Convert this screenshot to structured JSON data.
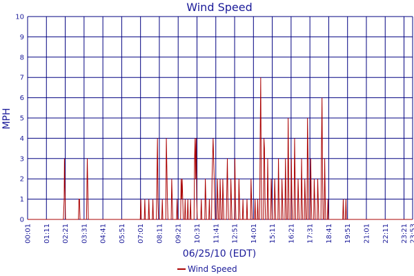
{
  "chart_data": {
    "type": "line",
    "title": "Wind Speed",
    "xlabel": "06/25/10 (EDT)",
    "ylabel": "MPH",
    "ylim": [
      0,
      10
    ],
    "y_ticks": [
      "0",
      "1",
      "2",
      "3",
      "4",
      "5",
      "6",
      "7",
      "8",
      "9",
      "10"
    ],
    "x_ticks": [
      "00:01",
      "01:11",
      "02:21",
      "03:31",
      "04:41",
      "05:51",
      "07:01",
      "08:11",
      "09:21",
      "10:31",
      "11:41",
      "12:51",
      "14:01",
      "15:11",
      "16:21",
      "17:31",
      "18:41",
      "19:51",
      "21:01",
      "22:11",
      "23:21",
      "23:53"
    ],
    "x_range": [
      "00:01",
      "23:53"
    ],
    "grid": true,
    "legend": "bottom-center",
    "colors": {
      "series": "#aa0000",
      "grid": "#000080",
      "text": "#1a1a99"
    },
    "series": [
      {
        "name": "Wind Speed",
        "points": [
          [
            "00:01",
            0
          ],
          [
            "02:14",
            0
          ],
          [
            "02:17",
            1
          ],
          [
            "02:18",
            3
          ],
          [
            "02:20",
            1.5
          ],
          [
            "02:22",
            0
          ],
          [
            "03:10",
            0
          ],
          [
            "03:12",
            1
          ],
          [
            "03:14",
            1
          ],
          [
            "03:16",
            0
          ],
          [
            "03:40",
            0
          ],
          [
            "03:42",
            2
          ],
          [
            "03:43",
            3
          ],
          [
            "03:45",
            1.5
          ],
          [
            "03:47",
            0
          ],
          [
            "07:00",
            0
          ],
          [
            "07:02",
            1
          ],
          [
            "07:04",
            0
          ],
          [
            "07:15",
            0
          ],
          [
            "07:17",
            1
          ],
          [
            "07:19",
            0
          ],
          [
            "07:30",
            0
          ],
          [
            "07:32",
            1
          ],
          [
            "07:34",
            0
          ],
          [
            "07:45",
            0
          ],
          [
            "07:47",
            1
          ],
          [
            "07:49",
            0
          ],
          [
            "08:00",
            0
          ],
          [
            "08:02",
            2
          ],
          [
            "08:04",
            4
          ],
          [
            "08:06",
            1
          ],
          [
            "08:08",
            0
          ],
          [
            "08:20",
            0
          ],
          [
            "08:22",
            1
          ],
          [
            "08:24",
            0
          ],
          [
            "08:35",
            0
          ],
          [
            "08:37",
            4
          ],
          [
            "08:39",
            2.5
          ],
          [
            "08:41",
            1
          ],
          [
            "08:43",
            0
          ],
          [
            "08:55",
            0
          ],
          [
            "08:57",
            2
          ],
          [
            "08:59",
            1
          ],
          [
            "09:01",
            0
          ],
          [
            "09:15",
            0
          ],
          [
            "09:17",
            1
          ],
          [
            "09:19",
            0
          ],
          [
            "09:30",
            0
          ],
          [
            "09:32",
            2
          ],
          [
            "09:34",
            1
          ],
          [
            "09:36",
            2
          ],
          [
            "09:38",
            1
          ],
          [
            "09:40",
            0
          ],
          [
            "09:45",
            0
          ],
          [
            "09:47",
            1
          ],
          [
            "09:49",
            0
          ],
          [
            "09:55",
            0
          ],
          [
            "09:57",
            1
          ],
          [
            "09:59",
            0
          ],
          [
            "10:05",
            0
          ],
          [
            "10:07",
            1
          ],
          [
            "10:09",
            0
          ],
          [
            "10:20",
            0
          ],
          [
            "10:22",
            3
          ],
          [
            "10:24",
            4
          ],
          [
            "10:26",
            2
          ],
          [
            "10:28",
            4
          ],
          [
            "10:30",
            1
          ],
          [
            "10:32",
            0
          ],
          [
            "10:45",
            0
          ],
          [
            "10:47",
            1
          ],
          [
            "10:49",
            0
          ],
          [
            "11:00",
            0
          ],
          [
            "11:02",
            2
          ],
          [
            "11:04",
            1
          ],
          [
            "11:06",
            0
          ],
          [
            "11:15",
            0
          ],
          [
            "11:17",
            1
          ],
          [
            "11:19",
            0
          ],
          [
            "11:25",
            0
          ],
          [
            "11:27",
            2
          ],
          [
            "11:29",
            3
          ],
          [
            "11:31",
            4
          ],
          [
            "11:33",
            3
          ],
          [
            "11:35",
            2
          ],
          [
            "11:37",
            1
          ],
          [
            "11:39",
            0
          ],
          [
            "11:45",
            0
          ],
          [
            "11:47",
            2
          ],
          [
            "11:49",
            1
          ],
          [
            "11:51",
            0
          ],
          [
            "11:55",
            0
          ],
          [
            "11:57",
            2
          ],
          [
            "11:59",
            1
          ],
          [
            "12:01",
            0
          ],
          [
            "12:05",
            0
          ],
          [
            "12:07",
            2
          ],
          [
            "12:09",
            1
          ],
          [
            "12:11",
            0
          ],
          [
            "12:20",
            0
          ],
          [
            "12:22",
            1.5
          ],
          [
            "12:24",
            3
          ],
          [
            "12:26",
            1
          ],
          [
            "12:28",
            0
          ],
          [
            "12:35",
            0
          ],
          [
            "12:37",
            2
          ],
          [
            "12:39",
            1
          ],
          [
            "12:41",
            0
          ],
          [
            "12:50",
            0
          ],
          [
            "12:52",
            3
          ],
          [
            "12:54",
            1
          ],
          [
            "12:56",
            0
          ],
          [
            "13:05",
            0
          ],
          [
            "13:07",
            2
          ],
          [
            "13:09",
            1
          ],
          [
            "13:11",
            0
          ],
          [
            "13:20",
            0
          ],
          [
            "13:22",
            1
          ],
          [
            "13:24",
            0
          ],
          [
            "13:35",
            0
          ],
          [
            "13:37",
            1
          ],
          [
            "13:39",
            0
          ],
          [
            "13:50",
            0
          ],
          [
            "13:52",
            2
          ],
          [
            "13:54",
            1
          ],
          [
            "13:56",
            0
          ],
          [
            "14:05",
            0
          ],
          [
            "14:07",
            1
          ],
          [
            "14:09",
            0
          ],
          [
            "14:15",
            0
          ],
          [
            "14:17",
            1
          ],
          [
            "14:19",
            0
          ],
          [
            "14:24",
            0
          ],
          [
            "14:26",
            4
          ],
          [
            "14:28",
            7
          ],
          [
            "14:30",
            2
          ],
          [
            "14:32",
            0
          ],
          [
            "14:38",
            0
          ],
          [
            "14:40",
            4
          ],
          [
            "14:42",
            3.5
          ],
          [
            "14:44",
            1
          ],
          [
            "14:46",
            0
          ],
          [
            "14:52",
            0
          ],
          [
            "14:54",
            3
          ],
          [
            "14:56",
            1
          ],
          [
            "14:58",
            0
          ],
          [
            "15:05",
            0
          ],
          [
            "15:07",
            2
          ],
          [
            "15:09",
            1
          ],
          [
            "15:11",
            0
          ],
          [
            "15:18",
            0
          ],
          [
            "15:20",
            2
          ],
          [
            "15:22",
            1
          ],
          [
            "15:24",
            0
          ],
          [
            "15:32",
            0
          ],
          [
            "15:34",
            3
          ],
          [
            "15:36",
            1
          ],
          [
            "15:38",
            0
          ],
          [
            "15:45",
            0
          ],
          [
            "15:47",
            2
          ],
          [
            "15:49",
            1
          ],
          [
            "15:51",
            0
          ],
          [
            "15:58",
            0
          ],
          [
            "16:00",
            3
          ],
          [
            "16:02",
            1
          ],
          [
            "16:04",
            0
          ],
          [
            "16:08",
            0
          ],
          [
            "16:10",
            5
          ],
          [
            "16:12",
            2
          ],
          [
            "16:14",
            0
          ],
          [
            "16:20",
            0
          ],
          [
            "16:22",
            3
          ],
          [
            "16:24",
            1
          ],
          [
            "16:26",
            0
          ],
          [
            "16:32",
            0
          ],
          [
            "16:34",
            4
          ],
          [
            "16:36",
            2
          ],
          [
            "16:38",
            0
          ],
          [
            "16:45",
            0
          ],
          [
            "16:47",
            2
          ],
          [
            "16:49",
            1
          ],
          [
            "16:51",
            0
          ],
          [
            "16:58",
            0
          ],
          [
            "17:00",
            3
          ],
          [
            "17:02",
            1
          ],
          [
            "17:04",
            0
          ],
          [
            "17:10",
            0
          ],
          [
            "17:12",
            2
          ],
          [
            "17:14",
            1
          ],
          [
            "17:16",
            0
          ],
          [
            "17:20",
            0
          ],
          [
            "17:22",
            5
          ],
          [
            "17:24",
            3
          ],
          [
            "17:26",
            0
          ],
          [
            "17:32",
            0
          ],
          [
            "17:34",
            3
          ],
          [
            "17:36",
            1
          ],
          [
            "17:38",
            0
          ],
          [
            "17:45",
            0
          ],
          [
            "17:47",
            2
          ],
          [
            "17:49",
            1
          ],
          [
            "17:51",
            0
          ],
          [
            "17:58",
            0
          ],
          [
            "18:00",
            2
          ],
          [
            "18:02",
            1
          ],
          [
            "18:04",
            0
          ],
          [
            "18:12",
            0
          ],
          [
            "18:14",
            3.5
          ],
          [
            "18:16",
            6
          ],
          [
            "18:18",
            2
          ],
          [
            "18:20",
            0
          ],
          [
            "18:24",
            0
          ],
          [
            "18:26",
            3
          ],
          [
            "18:28",
            1
          ],
          [
            "18:30",
            0
          ],
          [
            "18:36",
            0
          ],
          [
            "18:38",
            1
          ],
          [
            "18:40",
            0
          ],
          [
            "19:33",
            0
          ],
          [
            "19:35",
            1
          ],
          [
            "19:37",
            0
          ],
          [
            "19:43",
            0
          ],
          [
            "19:45",
            1
          ],
          [
            "19:47",
            0
          ],
          [
            "23:53",
            0
          ]
        ]
      }
    ]
  }
}
